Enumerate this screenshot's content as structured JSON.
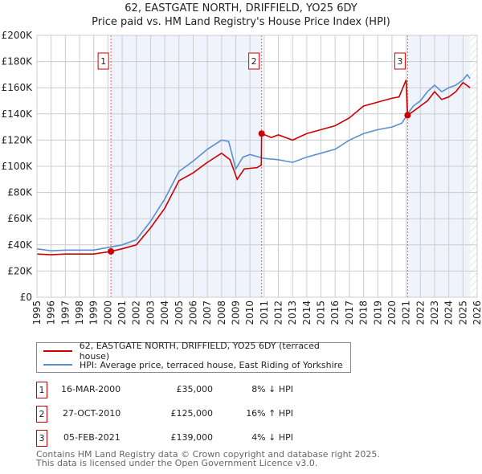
{
  "chart_data": {
    "type": "line",
    "title": "62, EASTGATE NORTH, DRIFFIELD, YO25 6DY",
    "subtitle": "Price paid vs. HM Land Registry's House Price Index (HPI)",
    "xlim": [
      1995,
      2026
    ],
    "ylim": [
      0,
      200000
    ],
    "yticks": [
      0,
      20000,
      40000,
      60000,
      80000,
      100000,
      120000,
      140000,
      160000,
      180000,
      200000
    ],
    "ytick_labels": [
      "£0",
      "£20K",
      "£40K",
      "£60K",
      "£80K",
      "£100K",
      "£120K",
      "£140K",
      "£160K",
      "£180K",
      "£200K"
    ],
    "xticks": [
      "1995",
      "1996",
      "1997",
      "1998",
      "1999",
      "2000",
      "2001",
      "2002",
      "2003",
      "2004",
      "2005",
      "2006",
      "2007",
      "2008",
      "2009",
      "2010",
      "2011",
      "2012",
      "2013",
      "2014",
      "2015",
      "2016",
      "2017",
      "2018",
      "2019",
      "2020",
      "2021",
      "2022",
      "2023",
      "2024",
      "2025",
      "2026"
    ],
    "series": [
      {
        "name": "62, EASTGATE NORTH, DRIFFIELD, YO25 6DY (terraced house)",
        "color": "#cc0000",
        "x": [
          1995,
          1996,
          1997,
          1998,
          1999,
          2000.2,
          2001,
          2002,
          2003,
          2004,
          2005,
          2006,
          2007,
          2008,
          2008.6,
          2009.1,
          2009.6,
          2010.5,
          2010.8,
          2010.82,
          2011.5,
          2012,
          2013,
          2014,
          2015,
          2016,
          2017,
          2018,
          2019,
          2020,
          2020.5,
          2021.0,
          2021.1,
          2021.5,
          2022,
          2022.5,
          2023,
          2023.5,
          2024,
          2024.5,
          2025,
          2025.5
        ],
        "y": [
          33000,
          32500,
          33000,
          33000,
          33000,
          35000,
          37000,
          40000,
          53000,
          68000,
          89000,
          95000,
          103000,
          110000,
          105000,
          90000,
          98000,
          99000,
          101000,
          125000,
          122000,
          124000,
          120000,
          125000,
          128000,
          131000,
          137000,
          146000,
          149000,
          152000,
          153000,
          166000,
          139000,
          142000,
          146000,
          150000,
          157000,
          151000,
          153000,
          157000,
          164000,
          160000
        ]
      },
      {
        "name": "HPI: Average price, terraced house, East Riding of Yorkshire",
        "color": "#5b8fd0",
        "x": [
          1995,
          1996,
          1997,
          1998,
          1999,
          2000,
          2001,
          2002,
          2003,
          2004,
          2005,
          2006,
          2007,
          2008,
          2008.5,
          2009.0,
          2009.5,
          2010,
          2011,
          2012,
          2013,
          2014,
          2015,
          2016,
          2017,
          2018,
          2019,
          2020,
          2020.7,
          2021.1,
          2021.5,
          2022,
          2022.5,
          2023,
          2023.5,
          2024,
          2024.5,
          2025,
          2025.3,
          2025.5
        ],
        "y": [
          37000,
          35500,
          36000,
          36000,
          36000,
          38000,
          40000,
          44000,
          58000,
          75000,
          96000,
          104000,
          113000,
          120000,
          119000,
          98000,
          107000,
          109000,
          106000,
          105000,
          103000,
          107000,
          110000,
          113000,
          120000,
          125000,
          128000,
          130000,
          133000,
          140000,
          146000,
          150000,
          157000,
          162000,
          157000,
          160000,
          162000,
          166000,
          170000,
          167000
        ]
      }
    ],
    "sales": [
      {
        "n": "1",
        "x": 2000.21,
        "y": 35000,
        "date": "16-MAR-2000",
        "price": "£35,000",
        "hpi": "8% ↓ HPI"
      },
      {
        "n": "2",
        "x": 2010.82,
        "y": 125000,
        "date": "27-OCT-2010",
        "price": "£125,000",
        "hpi": "16% ↑ HPI"
      },
      {
        "n": "3",
        "x": 2021.1,
        "y": 139000,
        "date": "05-FEB-2021",
        "price": "£139,000",
        "hpi": "4% ↓ HPI"
      }
    ],
    "legend": "below"
  },
  "footer": [
    "Contains HM Land Registry data © Crown copyright and database right 2025.",
    "This data is licensed under the Open Government Licence v3.0."
  ]
}
